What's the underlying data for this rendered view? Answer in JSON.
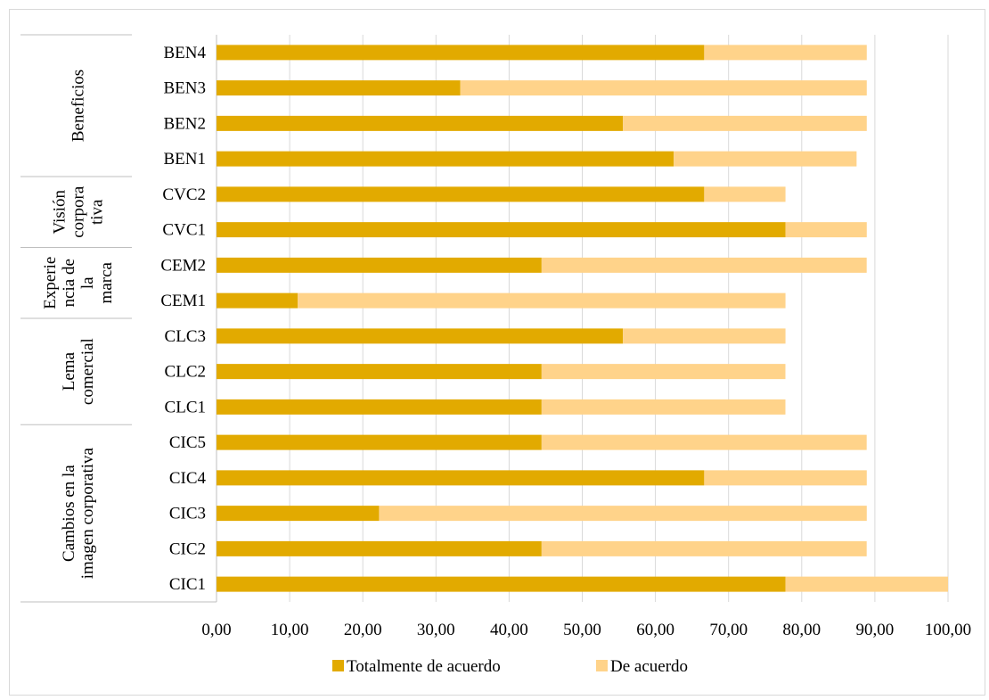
{
  "chart_data": {
    "type": "bar",
    "orientation": "horizontal",
    "stacked": true,
    "categories": [
      "CIC1",
      "CIC2",
      "CIC3",
      "CIC4",
      "CIC5",
      "CLC1",
      "CLC2",
      "CLC3",
      "CEM1",
      "CEM2",
      "CVC1",
      "CVC2",
      "BEN1",
      "BEN2",
      "BEN3",
      "BEN4"
    ],
    "groups": [
      {
        "label": "Cambios en la imagen corporativa",
        "lines": [
          "Cambios en la",
          "imagen corporativa"
        ],
        "categories": [
          "CIC1",
          "CIC2",
          "CIC3",
          "CIC4",
          "CIC5"
        ]
      },
      {
        "label": "Lema comercial",
        "lines": [
          "Lema",
          "comercial"
        ],
        "categories": [
          "CLC1",
          "CLC2",
          "CLC3"
        ]
      },
      {
        "label": "Experiencia de la marca",
        "lines": [
          "Experie",
          "ncia de",
          "la",
          "marca"
        ],
        "categories": [
          "CEM1",
          "CEM2"
        ]
      },
      {
        "label": "Visión corporativa",
        "lines": [
          "Visión",
          "corpora",
          "tiva"
        ],
        "categories": [
          "CVC1",
          "CVC2"
        ]
      },
      {
        "label": "Beneficios",
        "lines": [
          "Beneficios"
        ],
        "categories": [
          "BEN1",
          "BEN2",
          "BEN3",
          "BEN4"
        ]
      }
    ],
    "series": [
      {
        "name": "Totalmente de acuerdo",
        "color": "#E2AA00",
        "values": [
          77.78,
          44.44,
          22.22,
          66.67,
          44.44,
          44.44,
          44.44,
          55.56,
          11.11,
          44.44,
          77.78,
          66.67,
          62.5,
          55.56,
          33.33,
          66.67
        ]
      },
      {
        "name": "De acuerdo",
        "color": "#FFD38A",
        "values": [
          22.22,
          44.44,
          66.67,
          22.22,
          44.44,
          33.33,
          33.33,
          22.22,
          66.67,
          44.44,
          11.11,
          11.11,
          25.0,
          33.33,
          55.56,
          22.22
        ]
      }
    ],
    "xlim": [
      0,
      100
    ],
    "xticks": [
      "0,00",
      "10,00",
      "20,00",
      "30,00",
      "40,00",
      "50,00",
      "60,00",
      "70,00",
      "80,00",
      "90,00",
      "100,00"
    ],
    "grid": true,
    "legend_position": "bottom"
  }
}
